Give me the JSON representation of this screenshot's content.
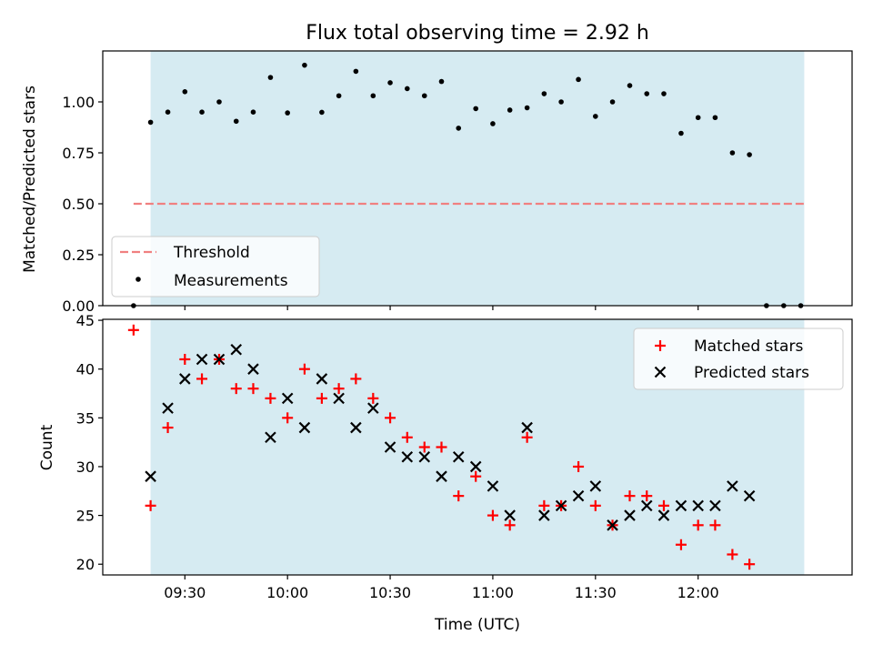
{
  "chart_data": [
    {
      "type": "scatter",
      "title": "Flux total observing time = 2.92 h",
      "xlabel": "",
      "ylabel": "Matched/Predicted stars",
      "ylim": [
        0,
        1.25
      ],
      "yticks": [
        "0.00",
        "0.25",
        "0.50",
        "0.75",
        "1.00"
      ],
      "ytick_values": [
        0,
        0.25,
        0.5,
        0.75,
        1.0
      ],
      "shaded_span": [
        9.333,
        12.517
      ],
      "legend": {
        "placement": "lower-left",
        "entries": [
          "Threshold",
          "Measurements"
        ]
      },
      "threshold": {
        "name": "Threshold",
        "x": [
          9.25,
          12.517
        ],
        "y": 0.5,
        "color": "#f08080"
      },
      "series": [
        {
          "name": "Measurements",
          "color": "#000000",
          "x": [
            9.25,
            9.333,
            9.417,
            9.5,
            9.583,
            9.667,
            9.75,
            9.833,
            9.917,
            10.0,
            10.083,
            10.167,
            10.25,
            10.333,
            10.417,
            10.5,
            10.583,
            10.667,
            10.75,
            10.833,
            10.917,
            11.0,
            11.083,
            11.167,
            11.25,
            11.333,
            11.417,
            11.5,
            11.583,
            11.667,
            11.75,
            11.833,
            11.917,
            12.0,
            12.083,
            12.167,
            12.25,
            12.333,
            12.417,
            12.5
          ],
          "values": [
            0.0,
            0.9,
            0.95,
            1.05,
            0.95,
            1.0,
            0.905,
            0.95,
            1.12,
            0.946,
            1.18,
            0.949,
            1.03,
            1.15,
            1.03,
            1.094,
            1.065,
            1.03,
            1.1,
            0.871,
            0.967,
            0.893,
            0.96,
            0.971,
            1.04,
            1.0,
            1.11,
            0.929,
            1.0,
            1.08,
            1.04,
            1.04,
            0.846,
            0.923,
            0.923,
            0.75,
            0.741,
            0.0,
            0.0,
            0.0
          ]
        }
      ]
    },
    {
      "type": "scatter",
      "xlabel": "Time (UTC)",
      "ylabel": "Count",
      "xlim": [
        9.1,
        12.75
      ],
      "ylim": [
        18.9,
        45.1
      ],
      "xticks": [
        "09:30",
        "10:00",
        "10:30",
        "11:00",
        "11:30",
        "12:00"
      ],
      "xtick_values": [
        9.5,
        10.0,
        10.5,
        11.0,
        11.5,
        12.0
      ],
      "yticks": [
        "20",
        "25",
        "30",
        "35",
        "40",
        "45"
      ],
      "ytick_values": [
        20,
        25,
        30,
        35,
        40,
        45
      ],
      "shaded_span": [
        9.333,
        12.517
      ],
      "legend": {
        "placement": "top-right",
        "entries": [
          "Matched stars",
          "Predicted stars"
        ]
      },
      "series": [
        {
          "name": "Matched stars",
          "marker": "plus",
          "color": "#ff0000",
          "x": [
            9.25,
            9.333,
            9.417,
            9.5,
            9.583,
            9.667,
            9.75,
            9.833,
            9.917,
            10.0,
            10.083,
            10.167,
            10.25,
            10.333,
            10.417,
            10.5,
            10.583,
            10.667,
            10.75,
            10.833,
            10.917,
            11.0,
            11.083,
            11.167,
            11.25,
            11.333,
            11.417,
            11.5,
            11.583,
            11.667,
            11.75,
            11.833,
            11.917,
            12.0,
            12.083,
            12.167,
            12.25
          ],
          "values": [
            44,
            26,
            34,
            41,
            39,
            41,
            38,
            38,
            37,
            35,
            40,
            37,
            38,
            39,
            37,
            35,
            33,
            32,
            32,
            27,
            29,
            25,
            24,
            33,
            26,
            26,
            30,
            26,
            24,
            27,
            27,
            26,
            22,
            24,
            24,
            21,
            20
          ]
        },
        {
          "name": "Predicted stars",
          "marker": "x",
          "color": "#000000",
          "x": [
            9.333,
            9.417,
            9.5,
            9.583,
            9.667,
            9.75,
            9.833,
            9.917,
            10.0,
            10.083,
            10.167,
            10.25,
            10.333,
            10.417,
            10.5,
            10.583,
            10.667,
            10.75,
            10.833,
            10.917,
            11.0,
            11.083,
            11.167,
            11.25,
            11.333,
            11.417,
            11.5,
            11.583,
            11.667,
            11.75,
            11.833,
            11.917,
            12.0,
            12.083,
            12.167,
            12.25
          ],
          "values": [
            29,
            36,
            39,
            41,
            41,
            42,
            40,
            33,
            37,
            34,
            39,
            37,
            34,
            36,
            32,
            31,
            31,
            29,
            31,
            30,
            28,
            25,
            34,
            25,
            26,
            27,
            28,
            24,
            25,
            26,
            25,
            26,
            26,
            26,
            28,
            27
          ]
        }
      ]
    }
  ]
}
